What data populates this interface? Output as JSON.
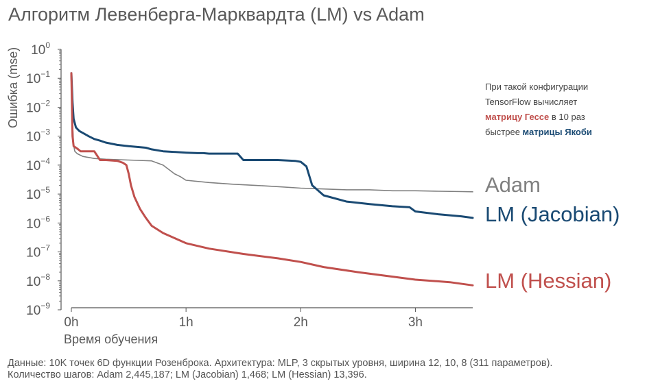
{
  "chart_data": {
    "type": "line",
    "title": "Алгоритм Левенберга-Марквардта (LM) vs Adam",
    "xlabel": "Время обучения",
    "ylabel": "Ошибка (mse)",
    "xlim": [
      0,
      3.5
    ],
    "ylim": [
      1e-09,
      1
    ],
    "yscale": "log",
    "grid": false,
    "x_ticks": [
      {
        "value": 0,
        "label": "0h"
      },
      {
        "value": 1,
        "label": "1h"
      },
      {
        "value": 2,
        "label": "2h"
      },
      {
        "value": 3,
        "label": "3h"
      }
    ],
    "y_ticks": [
      {
        "exp": 0
      },
      {
        "exp": -1
      },
      {
        "exp": -2
      },
      {
        "exp": -3
      },
      {
        "exp": -4
      },
      {
        "exp": -5
      },
      {
        "exp": -6
      },
      {
        "exp": -7
      },
      {
        "exp": -8
      },
      {
        "exp": -9
      }
    ],
    "series": [
      {
        "name": "Adam",
        "color": "#808080",
        "x": [
          0,
          0.01,
          0.02,
          0.03,
          0.05,
          0.1,
          0.2,
          0.3,
          0.5,
          0.7,
          0.8,
          0.9,
          0.95,
          1.0,
          1.2,
          1.4,
          1.6,
          1.8,
          2.0,
          2.2,
          2.4,
          2.6,
          2.8,
          3.0,
          3.2,
          3.4,
          3.5
        ],
        "y": [
          0.1,
          0.003,
          0.0005,
          0.0003,
          0.00025,
          0.0002,
          0.00017,
          0.00016,
          0.00015,
          0.00014,
          0.0001,
          5e-05,
          4e-05,
          3e-05,
          2.5e-05,
          2.2e-05,
          2e-05,
          1.8e-05,
          1.6e-05,
          1.5e-05,
          1.4e-05,
          1.4e-05,
          1.3e-05,
          1.3e-05,
          1.25e-05,
          1.22e-05,
          1.2e-05
        ]
      },
      {
        "name": "LM (Jacobian)",
        "color": "#1a4a73",
        "x": [
          0,
          0.01,
          0.02,
          0.04,
          0.07,
          0.1,
          0.15,
          0.2,
          0.25,
          0.3,
          0.4,
          0.5,
          0.65,
          0.7,
          0.8,
          1.0,
          1.1,
          1.15,
          1.2,
          1.3,
          1.45,
          1.5,
          1.6,
          1.8,
          1.95,
          2.0,
          2.05,
          2.1,
          2.2,
          2.4,
          2.6,
          2.8,
          2.95,
          3.0,
          3.2,
          3.4,
          3.5
        ],
        "y": [
          0.15,
          0.015,
          0.004,
          0.002,
          0.0015,
          0.0013,
          0.001,
          0.0008,
          0.0007,
          0.0006,
          0.0005,
          0.00045,
          0.0004,
          0.00035,
          0.0003,
          0.00027,
          0.00026,
          0.00026,
          0.00025,
          0.00025,
          0.00025,
          0.00015,
          0.00015,
          0.00015,
          0.00014,
          0.00013,
          9e-05,
          2e-05,
          9e-06,
          5.5e-06,
          4.5e-06,
          3.8e-06,
          3.5e-06,
          2.5e-06,
          2e-06,
          1.7e-06,
          1.5e-06
        ]
      },
      {
        "name": "LM (Hessian)",
        "color": "#c0504d",
        "x": [
          0,
          0.01,
          0.02,
          0.04,
          0.06,
          0.08,
          0.12,
          0.2,
          0.25,
          0.3,
          0.4,
          0.45,
          0.48,
          0.5,
          0.52,
          0.55,
          0.6,
          0.65,
          0.7,
          0.8,
          0.9,
          1.0,
          1.2,
          1.5,
          1.8,
          2.0,
          2.2,
          2.5,
          2.8,
          3.0,
          3.3,
          3.5
        ],
        "y": [
          0.15,
          0.001,
          0.00045,
          0.0004,
          0.00035,
          0.0003,
          0.0003,
          0.0003,
          0.00015,
          0.00015,
          0.00014,
          0.00012,
          0.0001,
          5e-05,
          2e-05,
          8e-06,
          3e-06,
          1.5e-06,
          8e-07,
          4.5e-07,
          3e-07,
          2e-07,
          1.3e-07,
          8.5e-08,
          6e-08,
          4.5e-08,
          3e-08,
          2e-08,
          1.4e-08,
          1.1e-08,
          9e-09,
          7e-09
        ]
      }
    ]
  },
  "annotation": {
    "line1": "При такой конфигурации",
    "line2": "TensorFlow вычисляет",
    "hessian_phrase": "матрицу Гессе",
    "line3_rest": " в 10 раз",
    "line4_start": "быстрее ",
    "jacobian_phrase": "матрицы Якоби"
  },
  "footer": {
    "line1": "Данные: 10K точек 6D функции Розенброка. Архитектура: MLP, 3 скрытых уровня, ширина 12, 10, 8 (311 параметров).",
    "line2": "Количество шагов: Adam 2,445,187; LM (Jacobian) 1,468; LM (Hessian) 13,396."
  }
}
